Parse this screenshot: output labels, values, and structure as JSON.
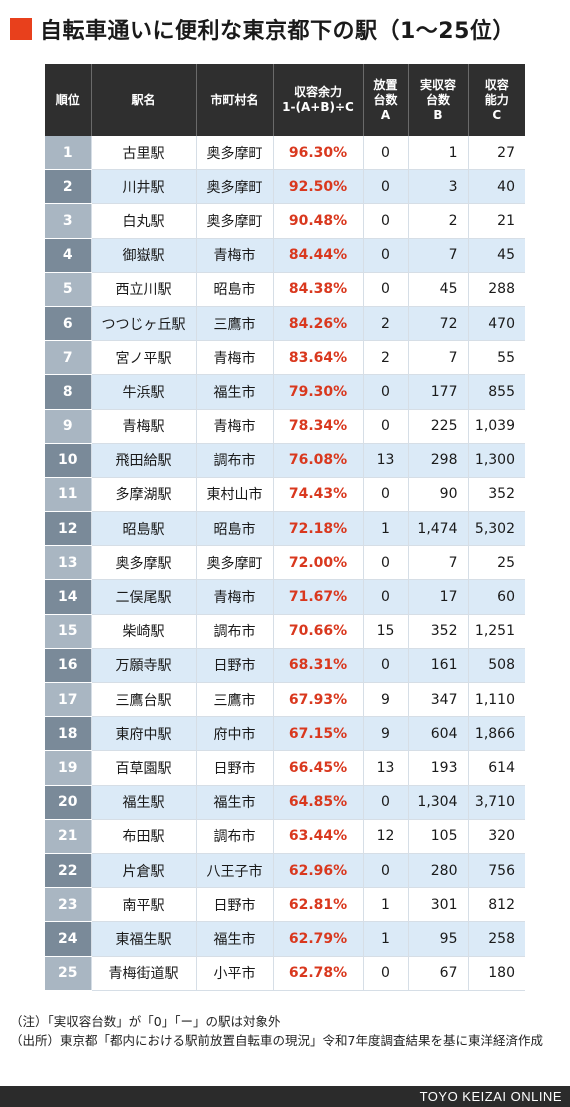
{
  "title": "自転車通いに便利な東京都下の駅（1〜25位）",
  "columns": [
    "順位",
    "駅名",
    "市町村名",
    "収容余力\n1-(A+B)÷C",
    "放置\n台数\nA",
    "実収容\n台数\nB",
    "収容\n能力\nC"
  ],
  "rows": [
    {
      "rank": "1",
      "station": "古里駅",
      "city": "奥多摩町",
      "ratio": "96.30%",
      "a": "0",
      "b": "1",
      "c": "27"
    },
    {
      "rank": "2",
      "station": "川井駅",
      "city": "奥多摩町",
      "ratio": "92.50%",
      "a": "0",
      "b": "3",
      "c": "40"
    },
    {
      "rank": "3",
      "station": "白丸駅",
      "city": "奥多摩町",
      "ratio": "90.48%",
      "a": "0",
      "b": "2",
      "c": "21"
    },
    {
      "rank": "4",
      "station": "御嶽駅",
      "city": "青梅市",
      "ratio": "84.44%",
      "a": "0",
      "b": "7",
      "c": "45"
    },
    {
      "rank": "5",
      "station": "西立川駅",
      "city": "昭島市",
      "ratio": "84.38%",
      "a": "0",
      "b": "45",
      "c": "288"
    },
    {
      "rank": "6",
      "station": "つつじヶ丘駅",
      "city": "三鷹市",
      "ratio": "84.26%",
      "a": "2",
      "b": "72",
      "c": "470"
    },
    {
      "rank": "7",
      "station": "宮ノ平駅",
      "city": "青梅市",
      "ratio": "83.64%",
      "a": "2",
      "b": "7",
      "c": "55"
    },
    {
      "rank": "8",
      "station": "牛浜駅",
      "city": "福生市",
      "ratio": "79.30%",
      "a": "0",
      "b": "177",
      "c": "855"
    },
    {
      "rank": "9",
      "station": "青梅駅",
      "city": "青梅市",
      "ratio": "78.34%",
      "a": "0",
      "b": "225",
      "c": "1,039"
    },
    {
      "rank": "10",
      "station": "飛田給駅",
      "city": "調布市",
      "ratio": "76.08%",
      "a": "13",
      "b": "298",
      "c": "1,300"
    },
    {
      "rank": "11",
      "station": "多摩湖駅",
      "city": "東村山市",
      "ratio": "74.43%",
      "a": "0",
      "b": "90",
      "c": "352"
    },
    {
      "rank": "12",
      "station": "昭島駅",
      "city": "昭島市",
      "ratio": "72.18%",
      "a": "1",
      "b": "1,474",
      "c": "5,302"
    },
    {
      "rank": "13",
      "station": "奥多摩駅",
      "city": "奥多摩町",
      "ratio": "72.00%",
      "a": "0",
      "b": "7",
      "c": "25"
    },
    {
      "rank": "14",
      "station": "二俣尾駅",
      "city": "青梅市",
      "ratio": "71.67%",
      "a": "0",
      "b": "17",
      "c": "60"
    },
    {
      "rank": "15",
      "station": "柴崎駅",
      "city": "調布市",
      "ratio": "70.66%",
      "a": "15",
      "b": "352",
      "c": "1,251"
    },
    {
      "rank": "16",
      "station": "万願寺駅",
      "city": "日野市",
      "ratio": "68.31%",
      "a": "0",
      "b": "161",
      "c": "508"
    },
    {
      "rank": "17",
      "station": "三鷹台駅",
      "city": "三鷹市",
      "ratio": "67.93%",
      "a": "9",
      "b": "347",
      "c": "1,110"
    },
    {
      "rank": "18",
      "station": "東府中駅",
      "city": "府中市",
      "ratio": "67.15%",
      "a": "9",
      "b": "604",
      "c": "1,866"
    },
    {
      "rank": "19",
      "station": "百草園駅",
      "city": "日野市",
      "ratio": "66.45%",
      "a": "13",
      "b": "193",
      "c": "614"
    },
    {
      "rank": "20",
      "station": "福生駅",
      "city": "福生市",
      "ratio": "64.85%",
      "a": "0",
      "b": "1,304",
      "c": "3,710"
    },
    {
      "rank": "21",
      "station": "布田駅",
      "city": "調布市",
      "ratio": "63.44%",
      "a": "12",
      "b": "105",
      "c": "320"
    },
    {
      "rank": "22",
      "station": "片倉駅",
      "city": "八王子市",
      "ratio": "62.96%",
      "a": "0",
      "b": "280",
      "c": "756"
    },
    {
      "rank": "23",
      "station": "南平駅",
      "city": "日野市",
      "ratio": "62.81%",
      "a": "1",
      "b": "301",
      "c": "812"
    },
    {
      "rank": "24",
      "station": "東福生駅",
      "city": "福生市",
      "ratio": "62.79%",
      "a": "1",
      "b": "95",
      "c": "258"
    },
    {
      "rank": "25",
      "station": "青梅街道駅",
      "city": "小平市",
      "ratio": "62.78%",
      "a": "0",
      "b": "67",
      "c": "180"
    }
  ],
  "notes": [
    "（注）「実収容台数」が「0」「ー」の駅は対象外",
    "（出所）東京都「都内における駅前放置自転車の現況」令和7年度調査結果を基に東洋経済作成"
  ],
  "brand": "TOYO KEIZAI ONLINE",
  "colors": {
    "accent": "#e8401c",
    "header_bg": "#2f2f2f",
    "rate_text": "#d9381e",
    "row_alt": "#dbeaf7"
  }
}
